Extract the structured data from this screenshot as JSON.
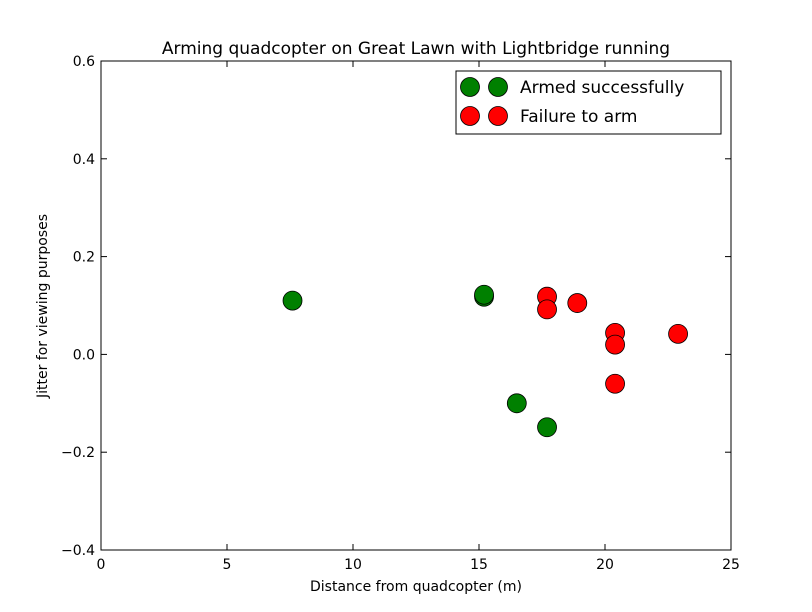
{
  "chart_data": {
    "type": "scatter",
    "title": "Arming quadcopter on Great Lawn with Lightbridge running",
    "xlabel": "Distance from quadcopter (m)",
    "ylabel": "Jitter for viewing purposes",
    "xlim": [
      0,
      25
    ],
    "ylim": [
      -0.4,
      0.6
    ],
    "xticks": [
      0,
      5,
      10,
      15,
      20,
      25
    ],
    "xtick_labels": [
      "0",
      "5",
      "10",
      "15",
      "20",
      "25"
    ],
    "yticks": [
      -0.4,
      -0.2,
      0.0,
      0.2,
      0.4,
      0.6
    ],
    "ytick_labels": [
      "−0.4",
      "−0.2",
      "0.0",
      "0.2",
      "0.4",
      "0.6"
    ],
    "grid": false,
    "legend_position": "top-right",
    "series": [
      {
        "name": "Armed successfully",
        "color": "#008000",
        "points": [
          {
            "x": 7.6,
            "y": 0.11
          },
          {
            "x": 15.2,
            "y": 0.118
          },
          {
            "x": 15.2,
            "y": 0.122
          },
          {
            "x": 16.5,
            "y": -0.1
          },
          {
            "x": 17.7,
            "y": -0.149
          }
        ]
      },
      {
        "name": "Failure to arm",
        "color": "#ff0000",
        "points": [
          {
            "x": 17.7,
            "y": 0.118
          },
          {
            "x": 17.7,
            "y": 0.092
          },
          {
            "x": 18.9,
            "y": 0.105
          },
          {
            "x": 20.4,
            "y": 0.044
          },
          {
            "x": 20.4,
            "y": 0.02
          },
          {
            "x": 20.4,
            "y": -0.06
          },
          {
            "x": 22.9,
            "y": 0.042
          }
        ]
      }
    ]
  }
}
